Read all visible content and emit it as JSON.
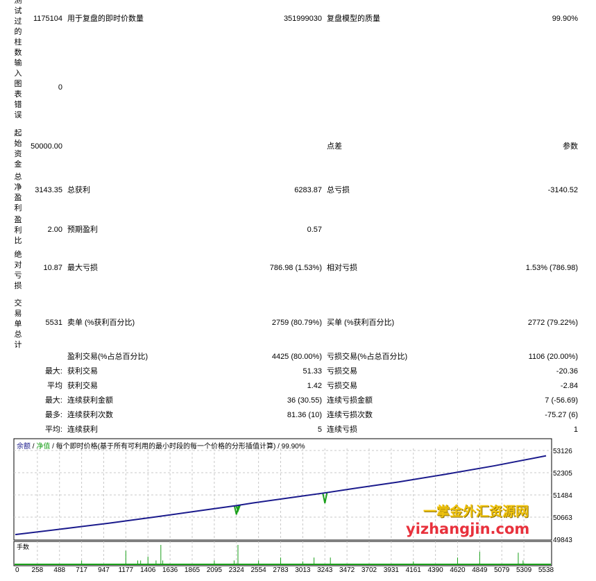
{
  "report": {
    "rows": [
      {
        "side_label": "测试过的柱数",
        "value": "1175104",
        "label1": "用于复盘的即时价数量",
        "value1": "351999030",
        "label2": "复盘模型的质量",
        "value2": "99.90%"
      },
      {
        "side_label": "输入图表错误",
        "value": "0",
        "label1": "",
        "value1": "",
        "label2": "",
        "value2": ""
      },
      {
        "side_label": "起始资金",
        "value": "50000.00",
        "label1": "",
        "value1": "",
        "label2": "点差",
        "value2": "参数"
      },
      {
        "side_label": "总净盈利",
        "value": "3143.35",
        "label1": "总获利",
        "value1": "6283.87",
        "label2": "总亏损",
        "value2": "-3140.52"
      },
      {
        "side_label": "盈利比",
        "value": "2.00",
        "label1": "预期盈利",
        "value1": "0.57",
        "label2": "",
        "value2": ""
      },
      {
        "side_label": "绝对亏损",
        "value": "10.87",
        "label1": "最大亏损",
        "value1": "786.98 (1.53%)",
        "label2": "相对亏损",
        "value2": "1.53% (786.98)"
      },
      {
        "side_label": "交易单总计",
        "value": "5531",
        "label1": "卖单 (%获利百分比)",
        "value1": "2759 (80.79%)",
        "label2": "买单 (%获利百分比)",
        "value2": "2772 (79.22%)"
      }
    ],
    "stats": [
      {
        "prefix": "",
        "label1": "盈利交易(%占总百分比)",
        "value1": "4425 (80.00%)",
        "label2": "亏损交易(%占总百分比)",
        "value2": "1106 (20.00%)"
      },
      {
        "prefix": "最大:",
        "label1": "获利交易",
        "value1": "51.33",
        "label2": "亏损交易",
        "value2": "-20.36"
      },
      {
        "prefix": "平均",
        "label1": "获利交易",
        "value1": "1.42",
        "label2": "亏损交易",
        "value2": "-2.84"
      },
      {
        "prefix": "最大:",
        "label1": "连续获利金额",
        "value1": "36 (30.55)",
        "label2": "连续亏损金额",
        "value2": "7 (-56.69)"
      },
      {
        "prefix": "最多:",
        "label1": "连续获利次数",
        "value1": "81.36 (10)",
        "label2": "连续亏损次数",
        "value2": "-75.27 (6)"
      },
      {
        "prefix": "平均:",
        "label1": "连续获利",
        "value1": "5",
        "label2": "连续亏损",
        "value2": "1"
      }
    ]
  },
  "chart_data": {
    "type": "line",
    "legend": {
      "balance": "余额",
      "sep": " / ",
      "equity": "净值",
      "rest": " / 每个即时价格(基于所有可利用的最小时段的每一个价格的分形插值计算) / 99.90%"
    },
    "colors": {
      "balance": "#1a1a8c",
      "equity": "#1aa01a",
      "volume": "#1aa01a",
      "grid": "#c8c8c8"
    },
    "ylim": [
      49843,
      53126
    ],
    "y_ticks": [
      "53126",
      "52305",
      "51484",
      "50663",
      "49843"
    ],
    "x_ticks": [
      "0",
      "258",
      "488",
      "717",
      "947",
      "1177",
      "1406",
      "1636",
      "1865",
      "2095",
      "2324",
      "2554",
      "2783",
      "3013",
      "3243",
      "3472",
      "3702",
      "3931",
      "4161",
      "4390",
      "4620",
      "4849",
      "5079",
      "5309",
      "5538"
    ],
    "grid": true,
    "balance": {
      "x": [
        0,
        500,
        1000,
        1500,
        2000,
        2324,
        2500,
        3000,
        3243,
        3500,
        4000,
        4500,
        5000,
        5538
      ],
      "y": [
        50020,
        50220,
        50440,
        50680,
        50930,
        51090,
        51190,
        51440,
        51560,
        51700,
        51960,
        52250,
        52560,
        52930
      ]
    },
    "equity_dips": [
      {
        "x": 2324,
        "y": 50760
      },
      {
        "x": 2340,
        "y": 50900
      },
      {
        "x": 3243,
        "y": 51180
      }
    ],
    "volume_label": "手数",
    "volume": {
      "x": [
        717,
        1177,
        1300,
        1330,
        1406,
        1490,
        1540,
        1560,
        2095,
        2300,
        2340,
        2554,
        2783,
        3013,
        3130,
        3300,
        4161,
        4620,
        4849,
        5250,
        5300
      ],
      "y": [
        0.2,
        0.7,
        0.2,
        0.2,
        0.4,
        0.2,
        1.0,
        0.2,
        0.2,
        0.2,
        1.0,
        0.2,
        0.35,
        0.15,
        0.35,
        0.35,
        0.15,
        0.35,
        0.65,
        0.6,
        0.2
      ]
    }
  },
  "watermark": {
    "line1": "一掌金外汇资源网",
    "line2": "yizhangjin.com"
  }
}
